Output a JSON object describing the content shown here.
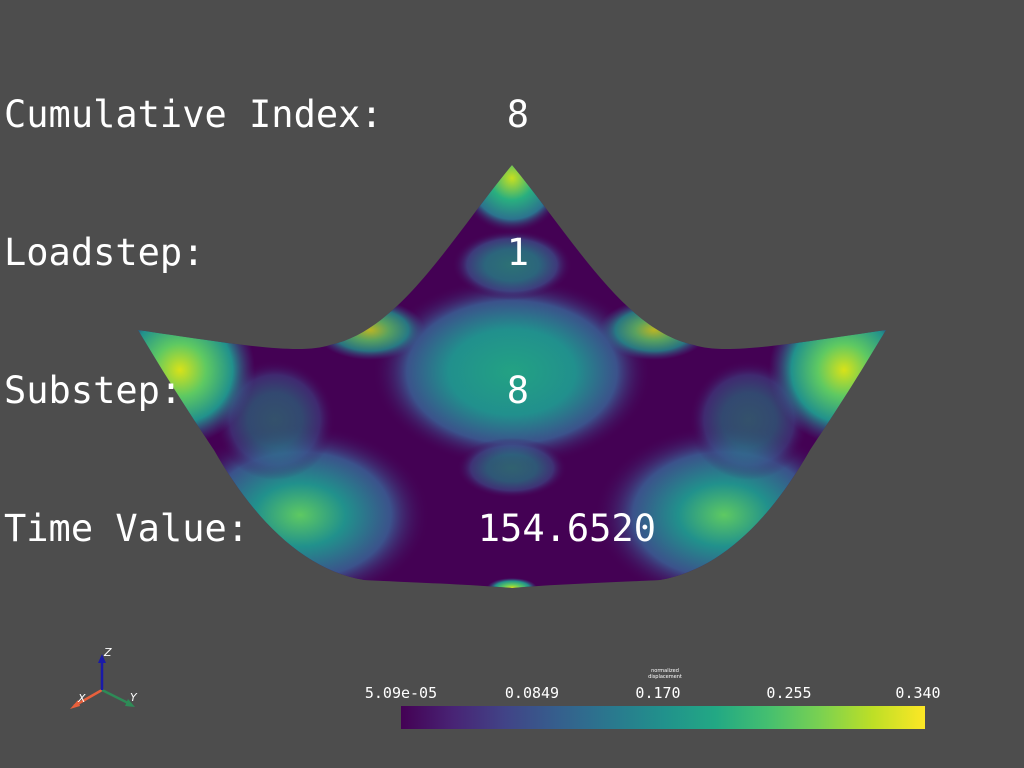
{
  "info": {
    "rows": [
      {
        "label": "Cumulative Index:",
        "value": "8"
      },
      {
        "label": "Loadstep:",
        "value": "1"
      },
      {
        "label": "Substep:",
        "value": "8"
      },
      {
        "label": "Time Value:",
        "value": "154.6520"
      }
    ]
  },
  "scalar_bar": {
    "title": "normalized\ndisplacement",
    "ticks": [
      "5.09e-05",
      "0.0849",
      "0.170",
      "0.255",
      "0.340"
    ],
    "range": [
      5.09e-05,
      0.34
    ],
    "colormap": "viridis"
  },
  "axes": {
    "x_label": "X",
    "y_label": "Y",
    "z_label": "Z",
    "x_color": "#e8603c",
    "y_color": "#2e8b57",
    "z_color": "#1a1aa8"
  },
  "colors": {
    "background": "#4d4d4d",
    "text": "#ffffff"
  }
}
